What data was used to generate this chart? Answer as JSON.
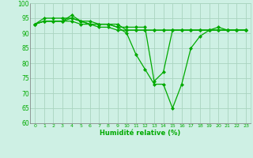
{
  "xlabel": "Humidité relative (%)",
  "xlim": [
    -0.5,
    23.5
  ],
  "ylim": [
    60,
    100
  ],
  "yticks": [
    60,
    65,
    70,
    75,
    80,
    85,
    90,
    95,
    100
  ],
  "xticks": [
    0,
    1,
    2,
    3,
    4,
    5,
    6,
    7,
    8,
    9,
    10,
    11,
    12,
    13,
    14,
    15,
    16,
    17,
    18,
    19,
    20,
    21,
    22,
    23
  ],
  "background_color": "#cef0e4",
  "grid_color": "#aad4c0",
  "line_color": "#00aa00",
  "marker": "D",
  "markersize": 2.0,
  "linewidth": 0.9,
  "series": [
    [
      93,
      94,
      94,
      94,
      96,
      94,
      93,
      93,
      93,
      92,
      90,
      83,
      78,
      73,
      73,
      65,
      73,
      85,
      89,
      91,
      92,
      91,
      91,
      91
    ],
    [
      93,
      95,
      95,
      95,
      95,
      94,
      94,
      93,
      93,
      93,
      91,
      91,
      91,
      91,
      91,
      91,
      91,
      91,
      91,
      91,
      91,
      91,
      91,
      91
    ],
    [
      93,
      94,
      94,
      94,
      95,
      94,
      93,
      92,
      92,
      91,
      91,
      91,
      91,
      91,
      91,
      91,
      91,
      91,
      91,
      91,
      91,
      91,
      91,
      91
    ],
    [
      93,
      94,
      94,
      94,
      94,
      93,
      93,
      93,
      93,
      92,
      92,
      92,
      92,
      74,
      77,
      91,
      91,
      91,
      91,
      91,
      91,
      91,
      91,
      91
    ]
  ]
}
